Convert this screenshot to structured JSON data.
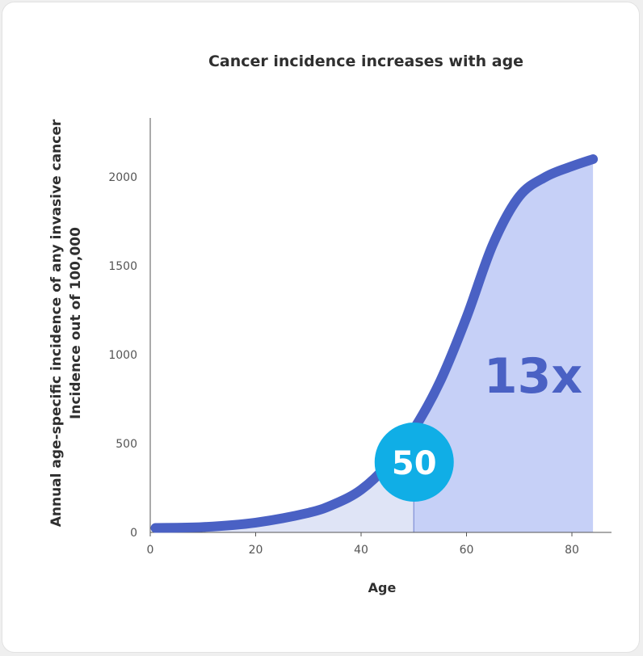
{
  "chart_data": {
    "type": "area",
    "title": "Cancer incidence increases with age",
    "xlabel": "Age",
    "ylabel_line1": "Annual age-specific incidence of any invasive cancer",
    "ylabel_line2": "Incidence out of 100,000",
    "xlim": [
      0,
      84
    ],
    "ylim": [
      0,
      2300
    ],
    "x_ticks": [
      "0",
      "20",
      "40",
      "60",
      "80"
    ],
    "y_ticks": [
      "0",
      "500",
      "1000",
      "1500",
      "2000"
    ],
    "series": [
      {
        "x": [
          1,
          10,
          20,
          30,
          35,
          40,
          45,
          50,
          55,
          60,
          65,
          70,
          75,
          80,
          84
        ],
        "y": [
          25,
          30,
          55,
          110,
          160,
          240,
          380,
          580,
          850,
          1210,
          1620,
          1890,
          2000,
          2060,
          2100
        ]
      }
    ],
    "marker": {
      "x": 50,
      "label": "50"
    },
    "annotation": "13x",
    "colors": {
      "line": "#4a61c4",
      "fill_after": "#c6d0f7",
      "fill_before": "#dfe4f6",
      "badge": "#10aee6",
      "annotation": "#4a61c4",
      "axis": "#555555"
    }
  }
}
